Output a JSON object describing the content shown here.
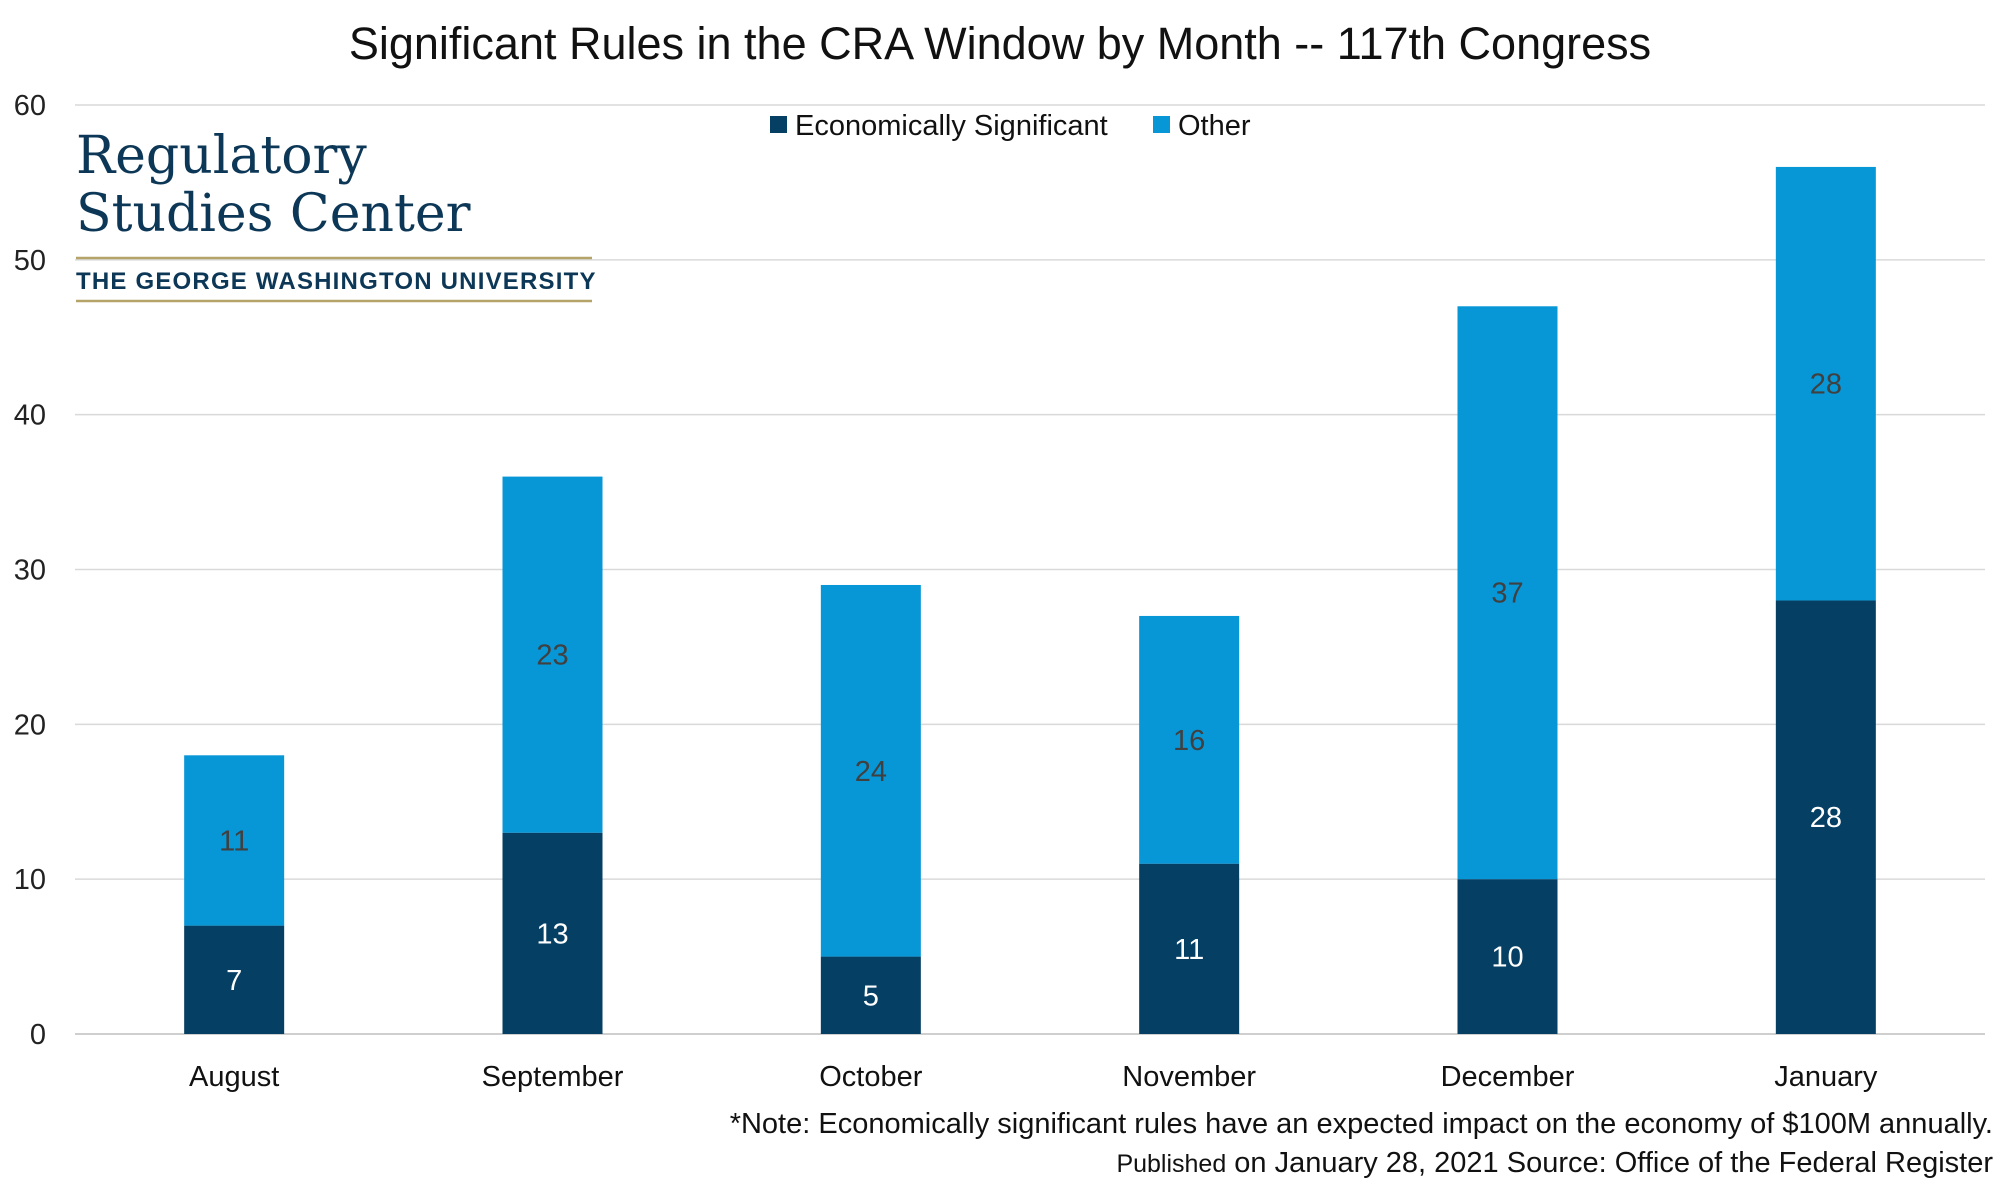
{
  "chart_data": {
    "type": "bar",
    "stacked": true,
    "title": "Significant Rules in the CRA Window by Month -- 117th Congress",
    "categories": [
      "August",
      "September",
      "October",
      "November",
      "December",
      "January"
    ],
    "series": [
      {
        "name": "Economically Significant",
        "values": [
          7,
          13,
          5,
          11,
          10,
          28
        ],
        "color": "#053f63",
        "label_color": "#ffffff"
      },
      {
        "name": "Other",
        "values": [
          11,
          23,
          24,
          16,
          37,
          28
        ],
        "color": "#0796d6",
        "label_color": "#404040"
      }
    ],
    "ylim": [
      0,
      60
    ],
    "yticks": [
      0,
      10,
      20,
      30,
      40,
      50,
      60
    ],
    "grid": true,
    "legend_position": "top-center",
    "note": "*Note: Economically significant rules have an expected impact on the economy of $100M annually.",
    "published_prefix": "Published",
    "published_rest": "on January 28, 2021  Source: Office of the Federal Register"
  },
  "logo": {
    "line1": "Regulatory",
    "line2": "Studies Center",
    "line3": "THE GEORGE WASHINGTON UNIVERSITY",
    "rule_color": "#b5a36a"
  },
  "colors": {
    "grid": "#d9d9d9",
    "axis": "#bfbfbf"
  }
}
